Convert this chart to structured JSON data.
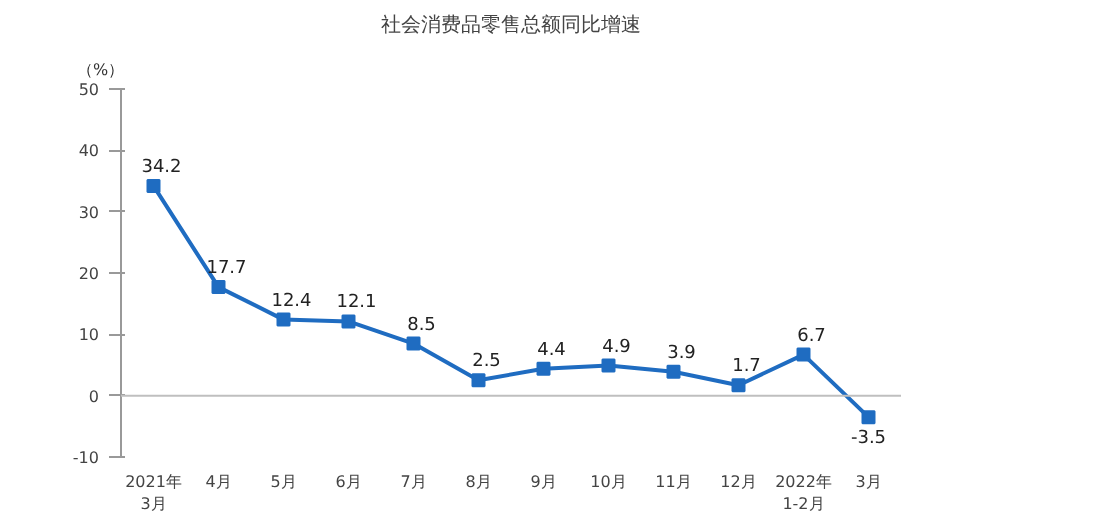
{
  "chart_data": {
    "type": "line",
    "title": "社会消费品零售总额同比增速",
    "ylabel": "（%）",
    "categories": [
      "2021年\n3月",
      "4月",
      "5月",
      "6月",
      "7月",
      "8月",
      "9月",
      "10月",
      "11月",
      "12月",
      "2022年\n1-2月",
      "3月"
    ],
    "series": [
      {
        "color": "#1f6cc1",
        "values": [
          34.2,
          17.7,
          12.4,
          12.1,
          8.5,
          2.5,
          4.4,
          4.9,
          3.9,
          1.7,
          6.7,
          -3.5
        ]
      }
    ],
    "ylim": [
      -10,
      50
    ],
    "yticks": [
      -10,
      0,
      10,
      20,
      30,
      40,
      50
    ],
    "ref_lines": [
      {
        "axis": "y",
        "value": 0,
        "color": "#bfbfbf"
      }
    ],
    "data_labels": true,
    "marker": "square",
    "line_style": "solid",
    "grid": false
  }
}
